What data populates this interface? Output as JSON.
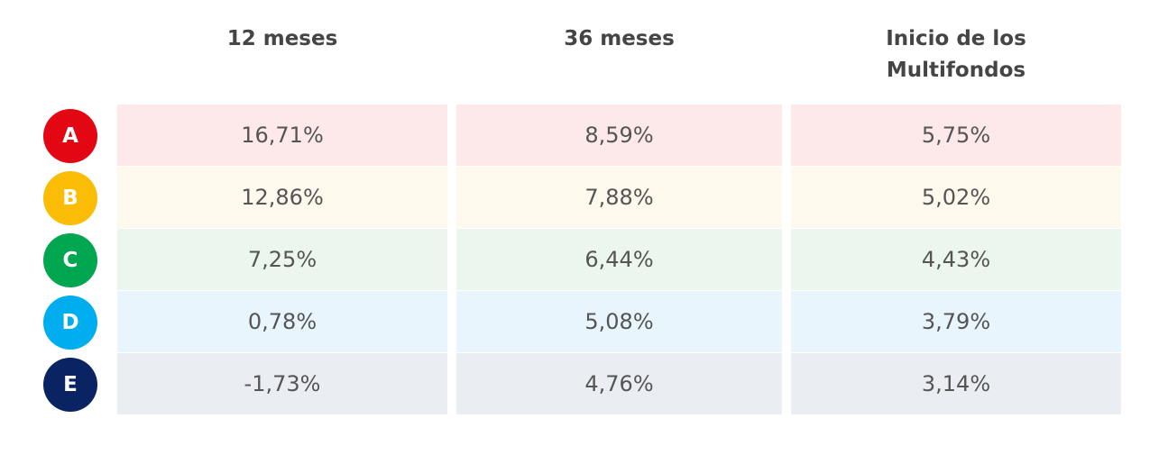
{
  "table": {
    "headers": [
      "12 meses",
      "36 meses",
      "Inicio de los Multifondos"
    ],
    "rows": [
      {
        "label": "A",
        "cells": [
          "16,71%",
          "8,59%",
          "5,75%"
        ]
      },
      {
        "label": "B",
        "cells": [
          "12,86%",
          "7,88%",
          "5,02%"
        ]
      },
      {
        "label": "C",
        "cells": [
          "7,25%",
          "6,44%",
          "4,43%"
        ]
      },
      {
        "label": "D",
        "cells": [
          "0,78%",
          "5,08%",
          "3,79%"
        ]
      },
      {
        "label": "E",
        "cells": [
          "-1,73%",
          "4,76%",
          "3,14%"
        ]
      }
    ]
  }
}
